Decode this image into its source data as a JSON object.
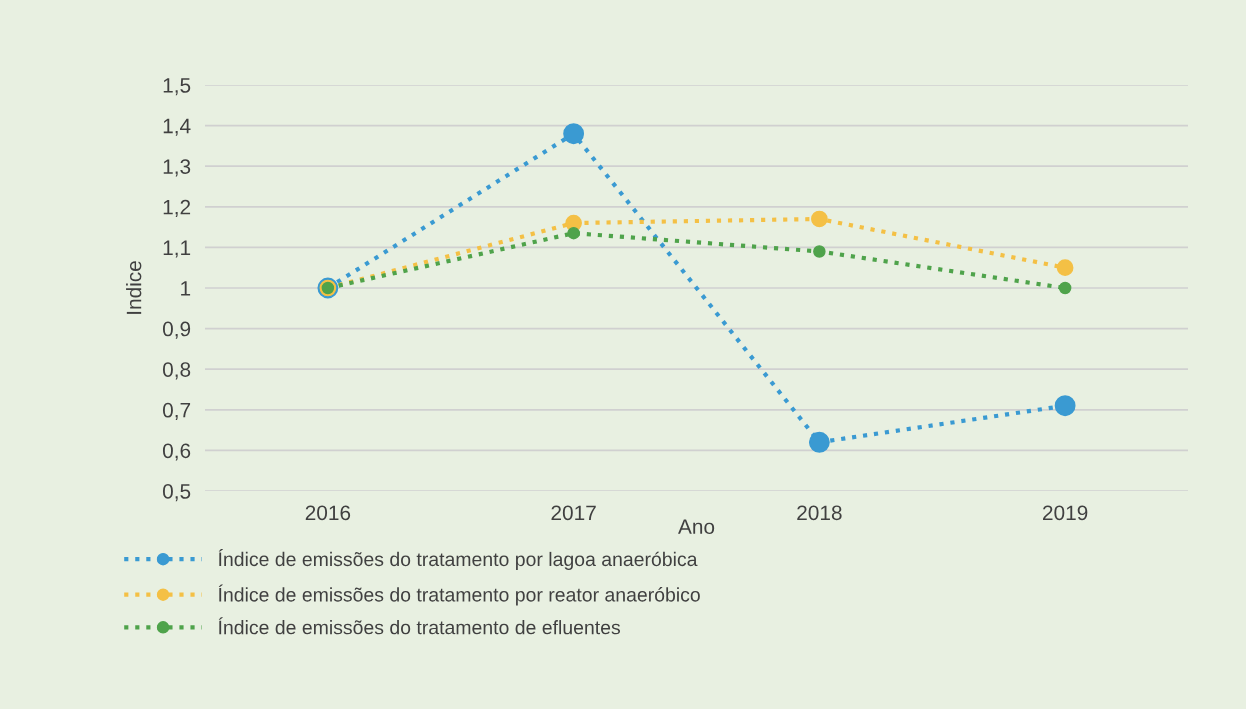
{
  "chart_data": {
    "type": "line",
    "categories": [
      "2016",
      "2017",
      "2018",
      "2019"
    ],
    "series": [
      {
        "name": "Índice de emissões do tratamento por lagoa anaeróbica",
        "color": "#3a9ad2",
        "values": [
          1.0,
          1.38,
          0.62,
          0.71
        ]
      },
      {
        "name": "Índice de emissões do tratamento por reator anaeróbico",
        "color": "#f4c045",
        "values": [
          1.0,
          1.16,
          1.17,
          1.05
        ]
      },
      {
        "name": "Índice de emissões do tratamento de efluentes",
        "color": "#4fa34b",
        "values": [
          1.0,
          1.135,
          1.09,
          1.0
        ]
      }
    ],
    "xlabel": "Ano",
    "ylabel": "Indice",
    "ylim": [
      0.5,
      1.5
    ],
    "yticks": [
      {
        "value": 0.5,
        "label": "0,5"
      },
      {
        "value": 0.6,
        "label": "0,6"
      },
      {
        "value": 0.7,
        "label": "0,7"
      },
      {
        "value": 0.8,
        "label": "0,8"
      },
      {
        "value": 0.9,
        "label": "0,9"
      },
      1,
      {
        "value": 1.1,
        "label": "1,1"
      },
      {
        "value": 1.2,
        "label": "1,2"
      },
      {
        "value": 1.3,
        "label": "1,3"
      },
      {
        "value": 1.4,
        "label": "1,4"
      },
      {
        "value": 1.5,
        "label": "1,5"
      }
    ],
    "grid": "y",
    "legend": "bottom left",
    "marker": "circle",
    "line_style": "dotted"
  }
}
